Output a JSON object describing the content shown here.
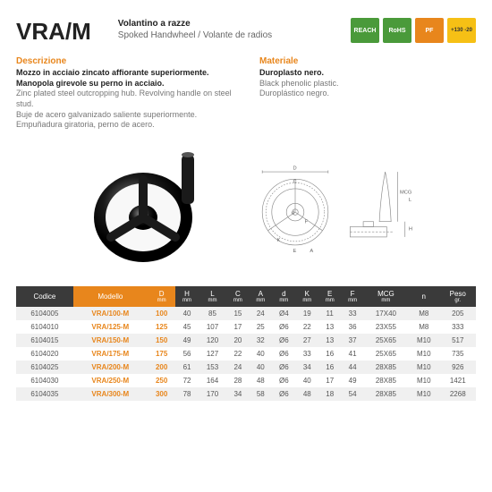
{
  "header": {
    "code": "VRA/M",
    "subtitle_it": "Volantino a razze",
    "subtitle_en": "Spoked Handwheel / Volante de radios"
  },
  "badges": [
    {
      "label": "REACH",
      "class": "badge-green"
    },
    {
      "label": "RoHS",
      "class": "badge-green"
    },
    {
      "label": "PF",
      "class": "badge-orange"
    },
    {
      "label": "+130 -20",
      "class": "badge-yellow"
    }
  ],
  "desc": {
    "title_left": "Descrizione",
    "it_bold": "Mozzo in acciaio zincato affiorante superiormente. Manopola girevole su perno in acciaio.",
    "en_light": "Zinc plated steel outcropping hub. Revolving handle on steel stud.",
    "es_light": "Buje de acero galvanizado saliente superiormente. Empuñadura giratoria, perno de acero.",
    "title_right": "Materiale",
    "mat_it": "Duroplasto nero.",
    "mat_en": "Black phenolic plastic.",
    "mat_es": "Duroplástico negro."
  },
  "diagram_labels": {
    "D": "D",
    "C": "C",
    "d": "d",
    "F": "F",
    "K": "K",
    "E": "E",
    "A": "A",
    "MCG": "MCG",
    "L": "L",
    "H": "H"
  },
  "table": {
    "headers": [
      {
        "label": "Codice",
        "sub": "",
        "orange": false
      },
      {
        "label": "Modello",
        "sub": "",
        "orange": true
      },
      {
        "label": "D",
        "sub": "mm",
        "orange": true
      },
      {
        "label": "H",
        "sub": "mm",
        "orange": false
      },
      {
        "label": "L",
        "sub": "mm",
        "orange": false
      },
      {
        "label": "C",
        "sub": "mm",
        "orange": false
      },
      {
        "label": "A",
        "sub": "mm",
        "orange": false
      },
      {
        "label": "d",
        "sub": "mm",
        "orange": false
      },
      {
        "label": "K",
        "sub": "mm",
        "orange": false
      },
      {
        "label": "E",
        "sub": "mm",
        "orange": false
      },
      {
        "label": "F",
        "sub": "mm",
        "orange": false
      },
      {
        "label": "MCG",
        "sub": "mm",
        "orange": false
      },
      {
        "label": "n",
        "sub": "",
        "orange": false
      },
      {
        "label": "Peso",
        "sub": "gr.",
        "orange": false
      }
    ],
    "rows": [
      [
        "6104005",
        "VRA/100-M",
        "100",
        "40",
        "85",
        "15",
        "24",
        "Ø4",
        "19",
        "11",
        "33",
        "17X40",
        "M8",
        "205"
      ],
      [
        "6104010",
        "VRA/125-M",
        "125",
        "45",
        "107",
        "17",
        "25",
        "Ø6",
        "22",
        "13",
        "36",
        "23X55",
        "M8",
        "333"
      ],
      [
        "6104015",
        "VRA/150-M",
        "150",
        "49",
        "120",
        "20",
        "32",
        "Ø6",
        "27",
        "13",
        "37",
        "25X65",
        "M10",
        "517"
      ],
      [
        "6104020",
        "VRA/175-M",
        "175",
        "56",
        "127",
        "22",
        "40",
        "Ø6",
        "33",
        "16",
        "41",
        "25X65",
        "M10",
        "735"
      ],
      [
        "6104025",
        "VRA/200-M",
        "200",
        "61",
        "153",
        "24",
        "40",
        "Ø6",
        "34",
        "16",
        "44",
        "28X85",
        "M10",
        "926"
      ],
      [
        "6104030",
        "VRA/250-M",
        "250",
        "72",
        "164",
        "28",
        "48",
        "Ø6",
        "40",
        "17",
        "49",
        "28X85",
        "M10",
        "1421"
      ],
      [
        "6104035",
        "VRA/300-M",
        "300",
        "78",
        "170",
        "34",
        "58",
        "Ø6",
        "48",
        "18",
        "54",
        "28X85",
        "M10",
        "2268"
      ]
    ],
    "orange_cols": [
      1,
      2
    ]
  },
  "colors": {
    "orange": "#e8861c",
    "dark": "#3a3a3a",
    "green": "#4a9a3a"
  }
}
